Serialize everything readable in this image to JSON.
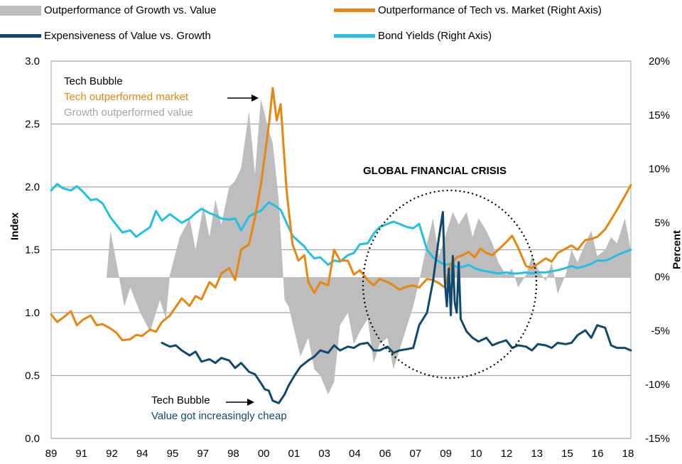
{
  "legend": [
    {
      "label": "Outperformance of Growth vs. Value",
      "kind": "area",
      "color": "#bdbdbd"
    },
    {
      "label": "Outperformance of Tech vs. Market (Right Axis)",
      "kind": "line",
      "color": "#e8860f"
    },
    {
      "label": "Expensiveness of Value vs. Growth",
      "kind": "line",
      "color": "#0f4a6e"
    },
    {
      "label": "Bond Yields (Right Axis)",
      "kind": "line",
      "color": "#22c0e4"
    }
  ],
  "annotations": {
    "tech_bubble_top_line1": "Tech Bubble",
    "tech_bubble_top_line2": "Tech outperformed market",
    "tech_bubble_top_line3": "Growth outperformed value",
    "gfc": "GLOBAL FINANCIAL CRISIS",
    "tech_bubble_bottom_line1": "Tech Bubble",
    "tech_bubble_bottom_line2": "Value got increasingly cheap"
  },
  "chart_data": {
    "type": "line",
    "ylabel_left": "Index",
    "ylabel_right": "Percent",
    "ylim_left": [
      0.0,
      3.0
    ],
    "ylim_right": [
      -15,
      20
    ],
    "left_ticks": [
      "3.0",
      "2.5",
      "2.0",
      "1.5",
      "1.0",
      "0.5",
      "0.0"
    ],
    "right_ticks": [
      "20%",
      "15%",
      "10%",
      "5%",
      "0%",
      "-5%",
      "-10%",
      "-15%"
    ],
    "x_tick_labels": [
      "89",
      "91",
      "92",
      "94",
      "95",
      "97",
      "98",
      "00",
      "01",
      "03",
      "04",
      "06",
      "07",
      "09",
      "10",
      "12",
      "13",
      "15",
      "16",
      "18"
    ],
    "xlim": [
      1989.0,
      2018.3
    ],
    "grid": "horizontal",
    "series": [
      {
        "name": "Outperformance of Growth vs. Value",
        "axis": "left",
        "render": "area",
        "baseline": 1.28,
        "x": [
          1991.8,
          1992.0,
          1992.3,
          1992.7,
          1993.0,
          1993.5,
          1994.0,
          1994.5,
          1994.8,
          1995.0,
          1995.5,
          1996.0,
          1996.3,
          1996.7,
          1997.0,
          1997.3,
          1997.6,
          1998.0,
          1998.3,
          1998.6,
          1999.0,
          1999.3,
          1999.6,
          2000.0,
          2000.2,
          2000.5,
          2000.8,
          2001.0,
          2001.3,
          2001.6,
          2002.0,
          2002.3,
          2002.6,
          2003.0,
          2003.3,
          2003.6,
          2004.0,
          2004.3,
          2004.6,
          2005.0,
          2005.3,
          2005.6,
          2006.0,
          2006.3,
          2006.6,
          2007.0,
          2007.3,
          2007.6,
          2008.0,
          2008.3,
          2008.6,
          2009.0,
          2009.3,
          2009.6,
          2010.0,
          2010.3,
          2010.6,
          2011.0,
          2011.3,
          2011.6,
          2012.0,
          2012.3,
          2012.6,
          2013.0,
          2013.3,
          2013.6,
          2014.0,
          2014.3,
          2014.6,
          2015.0,
          2015.3,
          2015.6,
          2016.0,
          2016.3,
          2016.6,
          2017.0,
          2017.3,
          2017.6,
          2018.0,
          2018.3
        ],
        "values": [
          1.28,
          1.65,
          1.4,
          1.05,
          1.2,
          1.0,
          0.85,
          1.1,
          0.95,
          1.3,
          1.6,
          1.75,
          1.5,
          1.85,
          1.6,
          1.9,
          1.7,
          2.0,
          2.05,
          2.15,
          2.6,
          2.1,
          2.7,
          2.45,
          2.35,
          1.9,
          1.1,
          1.05,
          0.85,
          0.65,
          0.8,
          0.55,
          0.5,
          0.35,
          0.45,
          0.9,
          1.0,
          0.75,
          0.85,
          0.95,
          0.6,
          0.75,
          0.8,
          0.55,
          0.7,
          0.9,
          1.05,
          1.25,
          1.55,
          1.75,
          1.45,
          1.65,
          1.8,
          1.7,
          1.8,
          1.6,
          1.75,
          1.65,
          1.55,
          1.4,
          1.3,
          1.35,
          1.2,
          1.3,
          1.45,
          1.35,
          1.25,
          1.4,
          1.15,
          1.3,
          1.5,
          1.4,
          1.55,
          1.65,
          1.45,
          1.5,
          1.6,
          1.55,
          1.75,
          1.5
        ]
      },
      {
        "name": "Outperformance of Tech vs. Market (Right Axis)",
        "axis": "right",
        "render": "line",
        "x": [
          1989.0,
          1989.3,
          1989.6,
          1990.0,
          1990.3,
          1990.6,
          1991.0,
          1991.3,
          1991.6,
          1992.0,
          1992.3,
          1992.6,
          1993.0,
          1993.3,
          1993.6,
          1994.0,
          1994.3,
          1994.6,
          1995.0,
          1995.3,
          1995.6,
          1996.0,
          1996.3,
          1996.6,
          1997.0,
          1997.3,
          1997.6,
          1998.0,
          1998.3,
          1998.6,
          1999.0,
          1999.3,
          1999.6,
          2000.0,
          2000.2,
          2000.4,
          2000.6,
          2000.9,
          2001.2,
          2001.5,
          2001.8,
          2002.0,
          2002.3,
          2002.6,
          2003.0,
          2003.3,
          2003.6,
          2004.0,
          2004.3,
          2004.6,
          2005.0,
          2005.3,
          2005.6,
          2006.0,
          2006.3,
          2006.6,
          2007.0,
          2007.3,
          2007.6,
          2008.0,
          2008.3,
          2008.6,
          2008.9,
          2009.2,
          2009.5,
          2009.8,
          2010.1,
          2010.4,
          2010.7,
          2011.0,
          2011.3,
          2011.6,
          2012.0,
          2012.3,
          2012.6,
          2013.0,
          2013.3,
          2013.6,
          2014.0,
          2014.3,
          2014.6,
          2015.0,
          2015.3,
          2015.6,
          2016.0,
          2016.3,
          2016.6,
          2017.0,
          2017.3,
          2017.6,
          2018.0,
          2018.3
        ],
        "values": [
          -3.5,
          -4.2,
          -3.8,
          -3.2,
          -4.5,
          -4.0,
          -3.6,
          -4.5,
          -4.4,
          -4.8,
          -5.2,
          -5.9,
          -5.8,
          -5.4,
          -5.5,
          -4.9,
          -5.1,
          -4.2,
          -3.6,
          -2.8,
          -2.0,
          -2.7,
          -1.8,
          -2.1,
          -0.5,
          -1.0,
          0.3,
          0.8,
          -0.3,
          2.5,
          3.0,
          5.5,
          8.5,
          14.0,
          17.5,
          14.5,
          16.0,
          8.0,
          3.0,
          1.5,
          2.0,
          -0.5,
          -1.5,
          -0.5,
          -0.8,
          2.5,
          1.5,
          1.5,
          0.2,
          0.6,
          -0.3,
          -0.8,
          -0.2,
          -0.5,
          -0.8,
          -1.2,
          -0.9,
          -0.8,
          -1.0,
          -0.2,
          -0.3,
          -0.6,
          -1.0,
          1.2,
          1.8,
          2.0,
          2.3,
          1.8,
          2.6,
          2.2,
          2.0,
          2.5,
          3.2,
          3.8,
          2.7,
          1.0,
          0.8,
          1.2,
          1.7,
          1.4,
          2.2,
          2.6,
          2.9,
          2.5,
          3.4,
          3.5,
          3.7,
          4.4,
          5.3,
          6.2,
          7.5,
          8.5
        ]
      },
      {
        "name": "Expensiveness of Value vs. Growth",
        "axis": "left",
        "render": "line",
        "x": [
          1994.6,
          1995.0,
          1995.3,
          1995.6,
          1996.0,
          1996.3,
          1996.6,
          1997.0,
          1997.3,
          1997.6,
          1998.0,
          1998.3,
          1998.6,
          1999.0,
          1999.3,
          1999.6,
          1999.8,
          2000.0,
          2000.2,
          2000.5,
          2000.8,
          2001.0,
          2001.3,
          2001.6,
          2002.0,
          2002.3,
          2002.6,
          2003.0,
          2003.3,
          2003.6,
          2004.0,
          2004.3,
          2004.6,
          2005.0,
          2005.3,
          2005.6,
          2006.0,
          2006.3,
          2006.6,
          2007.0,
          2007.3,
          2007.6,
          2008.0,
          2008.3,
          2008.6,
          2008.8,
          2008.9,
          2009.0,
          2009.1,
          2009.2,
          2009.3,
          2009.4,
          2009.5,
          2009.6,
          2009.7,
          2010.0,
          2010.3,
          2010.6,
          2011.0,
          2011.3,
          2011.6,
          2012.0,
          2012.3,
          2012.6,
          2013.0,
          2013.3,
          2013.6,
          2014.0,
          2014.3,
          2014.6,
          2015.0,
          2015.3,
          2015.6,
          2016.0,
          2016.3,
          2016.6,
          2017.0,
          2017.3,
          2017.6,
          2018.0,
          2018.3
        ],
        "values": [
          0.76,
          0.73,
          0.74,
          0.7,
          0.66,
          0.69,
          0.61,
          0.63,
          0.6,
          0.64,
          0.62,
          0.56,
          0.6,
          0.53,
          0.51,
          0.44,
          0.39,
          0.38,
          0.3,
          0.28,
          0.35,
          0.42,
          0.5,
          0.57,
          0.62,
          0.65,
          0.7,
          0.68,
          0.74,
          0.7,
          0.73,
          0.72,
          0.75,
          0.76,
          0.7,
          0.7,
          0.73,
          0.68,
          0.7,
          0.71,
          0.72,
          0.9,
          1.0,
          1.25,
          1.6,
          1.8,
          1.25,
          1.05,
          1.35,
          0.98,
          1.45,
          1.08,
          1.0,
          1.4,
          0.95,
          0.85,
          0.8,
          0.77,
          0.8,
          0.74,
          0.76,
          0.78,
          0.72,
          0.74,
          0.73,
          0.7,
          0.75,
          0.74,
          0.72,
          0.76,
          0.75,
          0.76,
          0.82,
          0.86,
          0.8,
          0.9,
          0.88,
          0.74,
          0.72,
          0.72,
          0.7
        ]
      },
      {
        "name": "Bond Yields (Right Axis)",
        "axis": "right",
        "render": "line",
        "x": [
          1989.0,
          1989.3,
          1989.6,
          1990.0,
          1990.3,
          1990.6,
          1991.0,
          1991.3,
          1991.6,
          1992.0,
          1992.3,
          1992.6,
          1993.0,
          1993.3,
          1993.6,
          1994.0,
          1994.3,
          1994.6,
          1995.0,
          1995.3,
          1995.6,
          1996.0,
          1996.3,
          1996.6,
          1997.0,
          1997.3,
          1997.6,
          1998.0,
          1998.3,
          1998.6,
          1999.0,
          1999.3,
          1999.6,
          2000.0,
          2000.3,
          2000.6,
          2000.9,
          2001.2,
          2001.5,
          2001.8,
          2002.0,
          2002.3,
          2002.6,
          2003.0,
          2003.3,
          2003.6,
          2004.0,
          2004.3,
          2004.6,
          2005.0,
          2005.3,
          2005.6,
          2006.0,
          2006.3,
          2006.6,
          2007.0,
          2007.3,
          2007.6,
          2008.0,
          2008.3,
          2008.6,
          2008.9,
          2009.2,
          2009.5,
          2009.8,
          2010.1,
          2010.4,
          2010.7,
          2011.0,
          2011.3,
          2011.6,
          2012.0,
          2012.3,
          2012.6,
          2013.0,
          2013.3,
          2013.6,
          2014.0,
          2014.3,
          2014.6,
          2015.0,
          2015.3,
          2015.6,
          2016.0,
          2016.3,
          2016.6,
          2017.0,
          2017.3,
          2017.6,
          2018.0,
          2018.3
        ],
        "values": [
          8.0,
          8.6,
          8.2,
          8.0,
          8.4,
          7.9,
          7.1,
          7.2,
          6.8,
          5.5,
          4.8,
          4.1,
          4.3,
          3.7,
          4.1,
          4.6,
          6.1,
          5.2,
          5.8,
          5.4,
          5.0,
          5.4,
          5.9,
          6.3,
          5.9,
          5.7,
          5.4,
          5.3,
          5.4,
          4.3,
          5.6,
          5.9,
          6.1,
          6.9,
          6.6,
          6.2,
          5.0,
          3.8,
          3.3,
          2.8,
          2.3,
          1.7,
          1.8,
          1.1,
          1.5,
          1.4,
          2.0,
          2.2,
          3.0,
          3.1,
          4.0,
          4.6,
          4.9,
          5.1,
          4.9,
          4.6,
          4.5,
          4.9,
          2.5,
          1.8,
          1.4,
          1.1,
          1.2,
          0.9,
          0.9,
          1.1,
          0.8,
          0.6,
          0.5,
          0.4,
          0.3,
          0.4,
          0.3,
          0.3,
          0.4,
          0.3,
          0.4,
          0.4,
          0.5,
          0.6,
          0.8,
          1.0,
          0.8,
          1.0,
          1.2,
          1.5,
          1.5,
          1.7,
          2.0,
          2.3,
          2.5
        ]
      }
    ]
  }
}
